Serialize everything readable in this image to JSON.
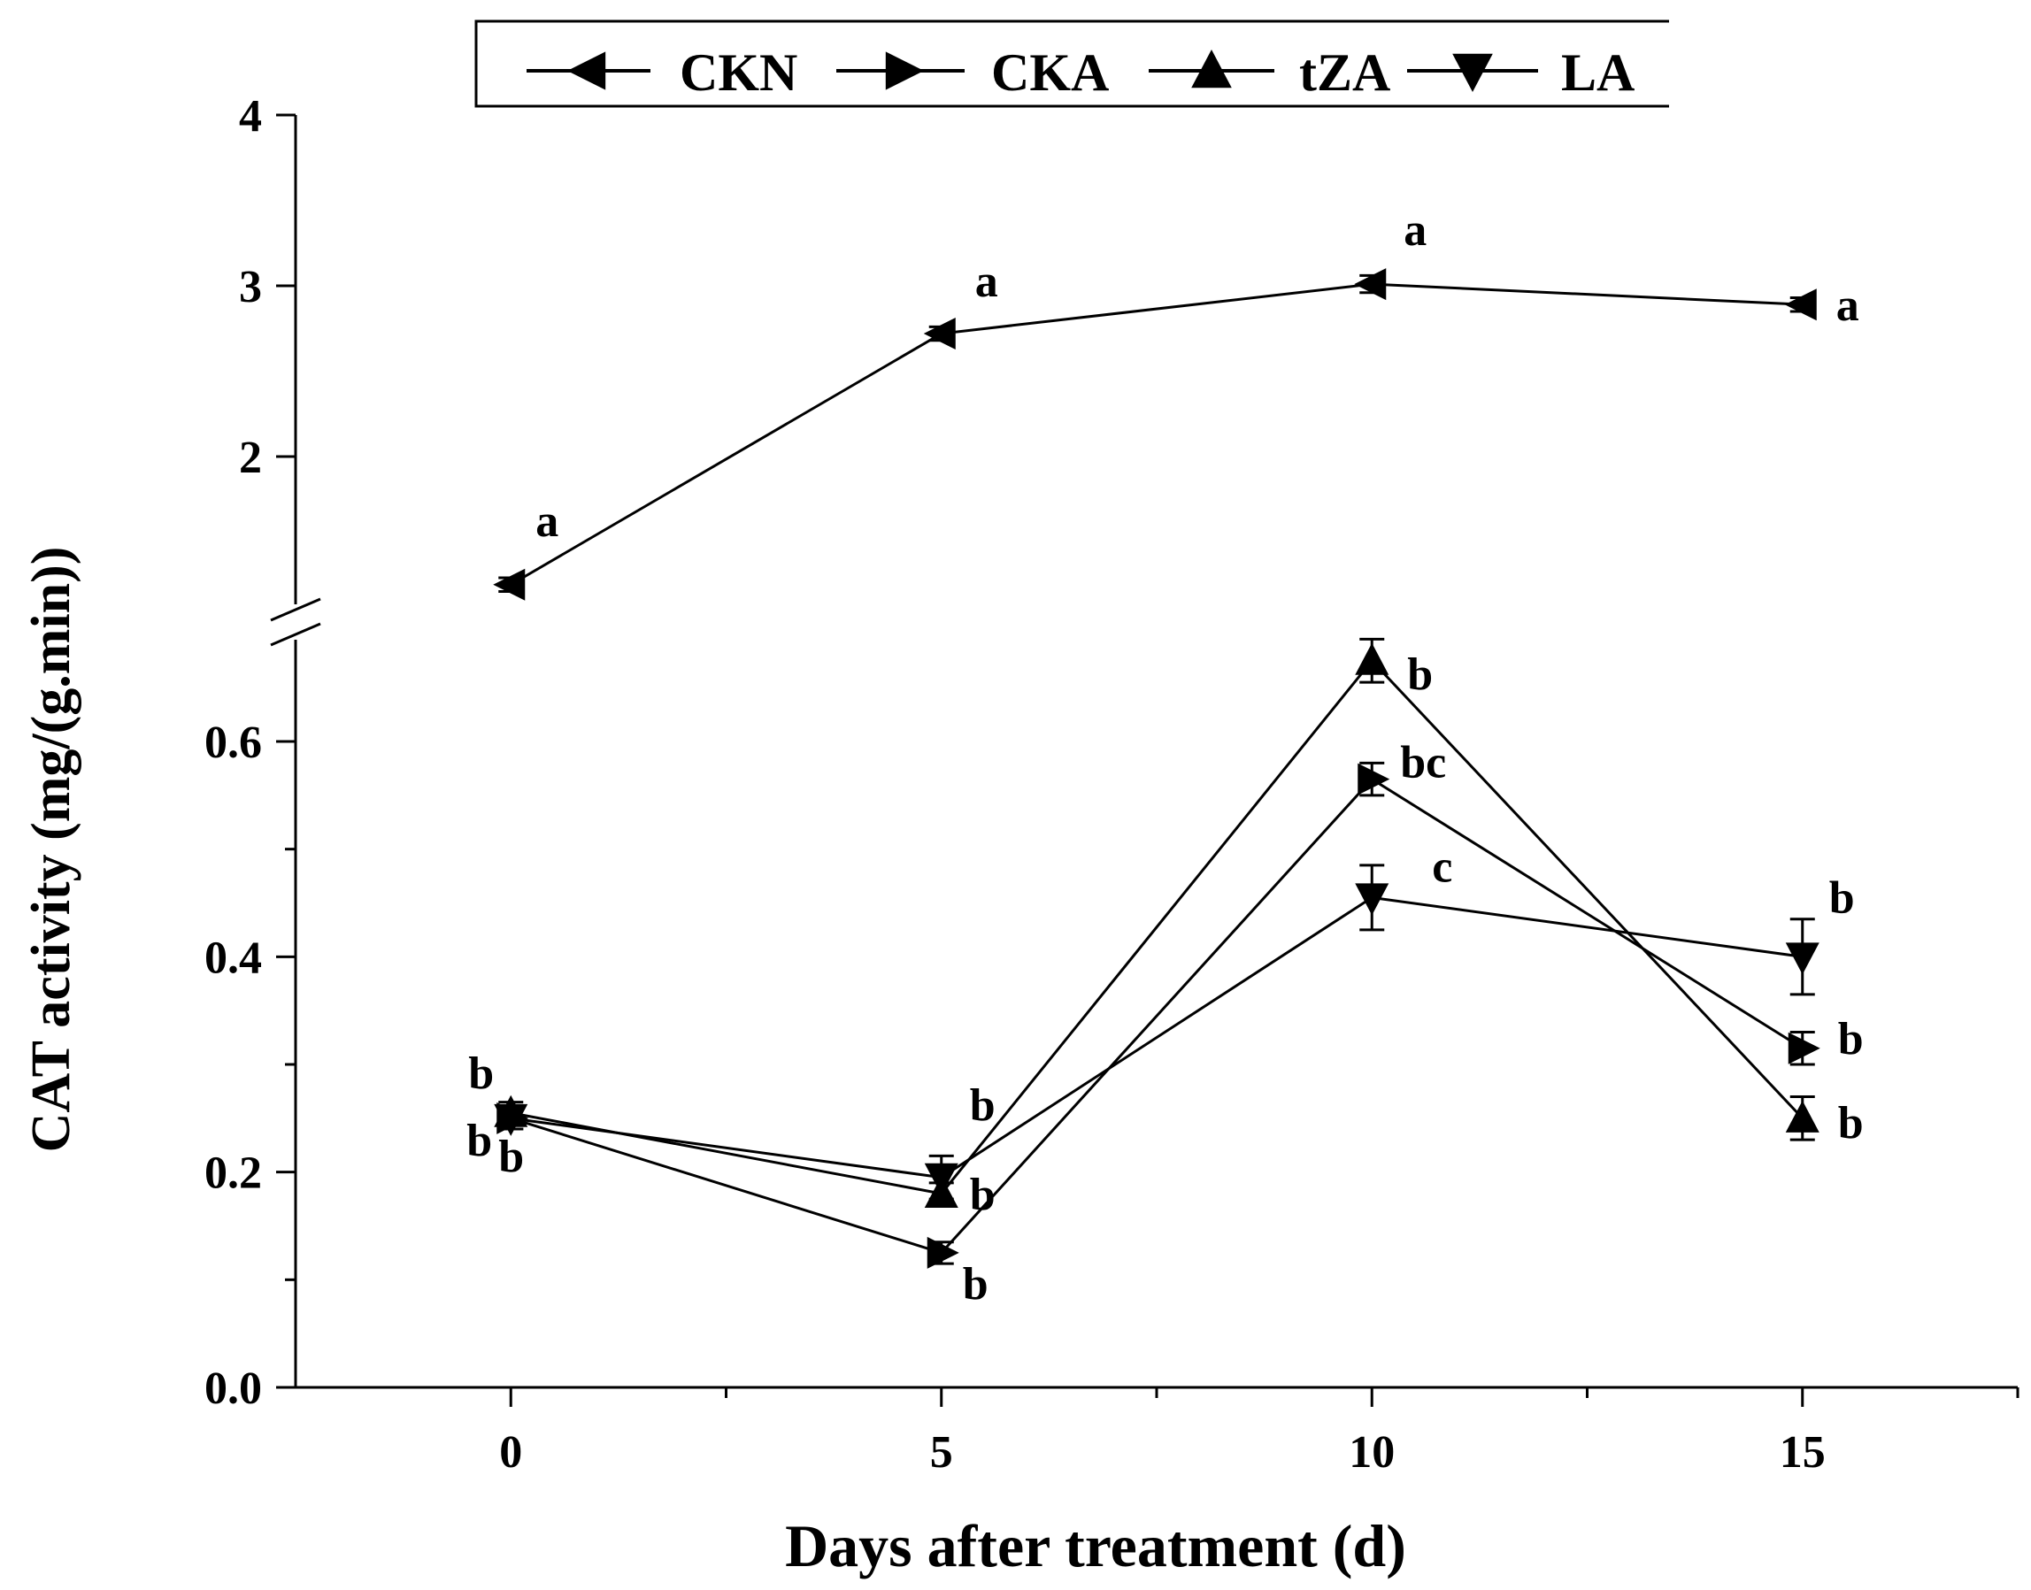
{
  "chart_data": {
    "type": "line",
    "title": "",
    "xlabel": "Days after treatment (d)",
    "ylabel": "CAT activity (mg/(g.min))",
    "x": [
      0,
      5,
      10,
      15
    ],
    "xlim": [
      -2.5,
      17.5
    ],
    "x_ticks": [
      "0",
      "5",
      "10",
      "15"
    ],
    "y_axis_break": true,
    "y_lower_range": [
      0.0,
      0.7
    ],
    "y_upper_range": [
      1.0,
      4.0
    ],
    "y_ticks": [
      "0.0",
      "0.2",
      "0.4",
      "0.6",
      "2",
      "3",
      "4"
    ],
    "legend": {
      "position": "top",
      "entries": [
        {
          "name": "CKN",
          "marker": "triangle-left"
        },
        {
          "name": "CKA",
          "marker": "triangle-right"
        },
        {
          "name": "tZA",
          "marker": "triangle-up"
        },
        {
          "name": "LA",
          "marker": "triangle-down"
        }
      ]
    },
    "series": [
      {
        "name": "CKN",
        "marker": "triangle-left",
        "values": [
          1.25,
          2.72,
          3.01,
          2.89
        ],
        "errors": [
          0.04,
          0.04,
          0.05,
          0.04
        ],
        "labels": [
          "a",
          "a",
          "a",
          "a"
        ]
      },
      {
        "name": "CKA",
        "marker": "triangle-right",
        "values": [
          0.25,
          0.125,
          0.565,
          0.315
        ],
        "errors": [
          0.01,
          0.01,
          0.015,
          0.015
        ],
        "labels": [
          "b",
          "b",
          "bc",
          "b"
        ]
      },
      {
        "name": "tZA",
        "marker": "triangle-up",
        "values": [
          0.255,
          0.18,
          0.675,
          0.25
        ],
        "errors": [
          0.01,
          0.01,
          0.02,
          0.02
        ],
        "labels": [
          "b",
          "b",
          "b",
          "b"
        ]
      },
      {
        "name": "LA",
        "marker": "triangle-down",
        "values": [
          0.25,
          0.195,
          0.455,
          0.4
        ],
        "errors": [
          0.01,
          0.02,
          0.03,
          0.035
        ],
        "labels": [
          "b",
          "b",
          "c",
          "b"
        ]
      }
    ]
  }
}
